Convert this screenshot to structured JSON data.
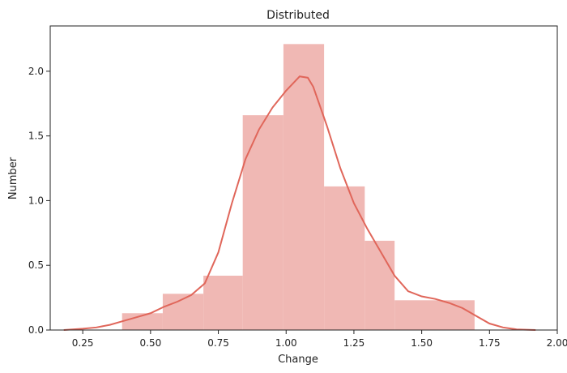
{
  "chart_data": {
    "type": "bar",
    "title": "Distributed",
    "xlabel": "Change",
    "ylabel": "Number",
    "xlim": [
      0.13,
      2.0
    ],
    "ylim": [
      0,
      2.35
    ],
    "grid": false,
    "xticks": [
      0.25,
      0.5,
      0.75,
      1.0,
      1.25,
      1.5,
      1.75,
      2.0
    ],
    "xtick_labels": [
      "0.25",
      "0.50",
      "0.75",
      "1.00",
      "1.25",
      "1.50",
      "1.75",
      "2.00"
    ],
    "yticks": [
      0.0,
      0.5,
      1.0,
      1.5,
      2.0
    ],
    "ytick_labels": [
      "0.0",
      "0.5",
      "1.0",
      "1.5",
      "2.0"
    ],
    "bins": [
      {
        "x0": 0.395,
        "x1": 0.545,
        "value": 0.13
      },
      {
        "x0": 0.545,
        "x1": 0.695,
        "value": 0.28
      },
      {
        "x0": 0.695,
        "x1": 0.84,
        "value": 0.42
      },
      {
        "x0": 0.84,
        "x1": 0.99,
        "value": 1.66
      },
      {
        "x0": 0.99,
        "x1": 1.14,
        "value": 2.21
      },
      {
        "x0": 1.14,
        "x1": 1.29,
        "value": 1.11
      },
      {
        "x0": 1.29,
        "x1": 1.4,
        "value": 0.69
      },
      {
        "x0": 1.4,
        "x1": 1.695,
        "value": 0.23
      }
    ],
    "kde": {
      "x": [
        0.18,
        0.25,
        0.3,
        0.35,
        0.4,
        0.45,
        0.5,
        0.55,
        0.6,
        0.65,
        0.7,
        0.75,
        0.8,
        0.85,
        0.9,
        0.95,
        1.0,
        1.05,
        1.08,
        1.1,
        1.15,
        1.2,
        1.25,
        1.3,
        1.35,
        1.4,
        1.45,
        1.5,
        1.55,
        1.6,
        1.65,
        1.7,
        1.75,
        1.8,
        1.85,
        1.92
      ],
      "y": [
        0.0,
        0.01,
        0.02,
        0.04,
        0.07,
        0.1,
        0.13,
        0.18,
        0.22,
        0.27,
        0.36,
        0.6,
        0.98,
        1.32,
        1.55,
        1.72,
        1.85,
        1.96,
        1.95,
        1.88,
        1.58,
        1.25,
        0.98,
        0.78,
        0.6,
        0.42,
        0.3,
        0.26,
        0.24,
        0.21,
        0.17,
        0.11,
        0.05,
        0.02,
        0.005,
        0.0
      ]
    },
    "colors": {
      "bar": "#f0b8b4",
      "line": "#e0665a",
      "axis": "#222222"
    }
  }
}
